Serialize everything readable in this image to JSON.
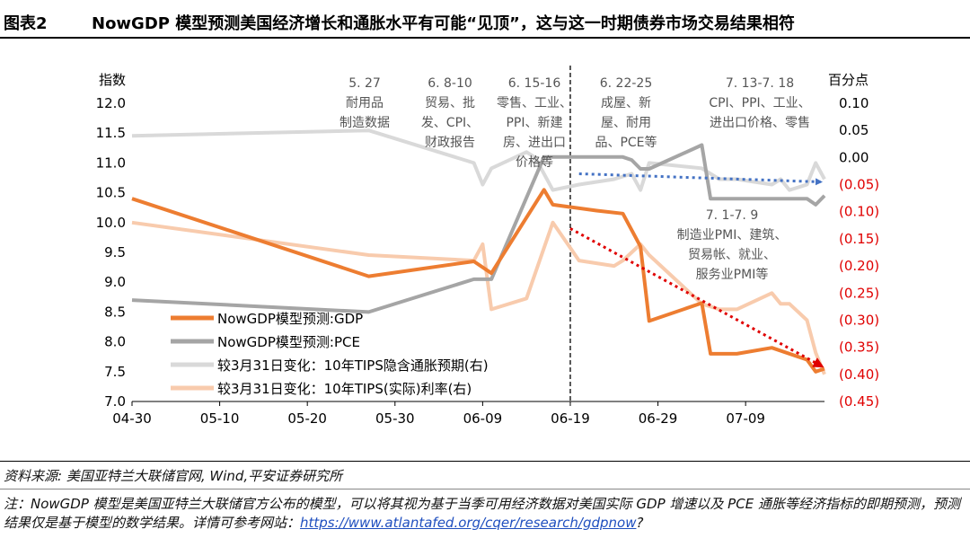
{
  "header": {
    "label": "图表2",
    "title": "NowGDP 模型预测美国经济增长和通胀水平有可能“见顶”，这与这一时期债券市场交易结果相符"
  },
  "footer": {
    "source": "资料来源: 美国亚特兰大联储官网, Wind,平安证券研究所",
    "note_prefix": "注：NowGDP 模型是美国亚特兰大联储官方公布的模型，可以将其视为基于当季可用经济数据对美国实际 GDP 增速以及 PCE 通胀等经济指标的即期预测，预测结果仅是基于模型的数学结果。详情可参考网站：",
    "note_link": "https://www.atlantafed.org/cqer/research/gdpnow",
    "note_suffix": "?"
  },
  "colors": {
    "gdp": "#ED7D31",
    "pce": "#A5A5A5",
    "tips_infl": "#D9D9D9",
    "tips_real": "#F8CBAD",
    "trend_blue": "#4472C4",
    "trend_red": "#E00000",
    "divider": "#000000"
  },
  "chart_data": {
    "type": "line",
    "left_axis": {
      "title": "指数",
      "min": 7.0,
      "max": 12.0,
      "ticks": [
        "7.0",
        "7.5",
        "8.0",
        "8.5",
        "9.0",
        "9.5",
        "10.0",
        "10.5",
        "11.0",
        "11.5",
        "12.0"
      ]
    },
    "right_axis": {
      "title": "百分点",
      "min": -0.45,
      "max": 0.1,
      "ticks": [
        "0.10",
        "0.05",
        "0.00",
        "(0.05)",
        "(0.10)",
        "(0.15)",
        "(0.20)",
        "(0.25)",
        "(0.30)",
        "(0.35)",
        "(0.40)",
        "(0.45)"
      ]
    },
    "x_axis": {
      "start": "2021-04-30",
      "end": "2021-07-18",
      "ticks": [
        "04-30",
        "05-10",
        "05-20",
        "05-30",
        "06-09",
        "06-19",
        "06-29",
        "07-09"
      ]
    },
    "series": [
      {
        "name": "NowGDP模型预测:GDP",
        "axis": "left",
        "color_key": "gdp",
        "points": [
          [
            "04-30",
            10.4
          ],
          [
            "05-27",
            9.1
          ],
          [
            "06-08",
            9.35
          ],
          [
            "06-10",
            9.15
          ],
          [
            "06-16",
            10.55
          ],
          [
            "06-17",
            10.3
          ],
          [
            "06-22",
            10.2
          ],
          [
            "06-25",
            10.15
          ],
          [
            "06-27",
            9.6
          ],
          [
            "06-28",
            8.35
          ],
          [
            "07-04",
            8.65
          ],
          [
            "07-05",
            7.8
          ],
          [
            "07-08",
            7.8
          ],
          [
            "07-12",
            7.9
          ],
          [
            "07-16",
            7.7
          ],
          [
            "07-17",
            7.5
          ],
          [
            "07-18",
            7.55
          ]
        ]
      },
      {
        "name": "NowGDP模型预测:PCE",
        "axis": "left",
        "color_key": "pce",
        "points": [
          [
            "04-30",
            8.7
          ],
          [
            "05-27",
            8.5
          ],
          [
            "06-08",
            9.05
          ],
          [
            "06-10",
            9.05
          ],
          [
            "06-16",
            11.1
          ],
          [
            "06-22",
            11.1
          ],
          [
            "06-25",
            11.1
          ],
          [
            "06-26",
            11.05
          ],
          [
            "06-27",
            10.9
          ],
          [
            "06-28",
            10.9
          ],
          [
            "07-04",
            11.3
          ],
          [
            "07-05",
            10.4
          ],
          [
            "07-16",
            10.4
          ],
          [
            "07-17",
            10.3
          ],
          [
            "07-18",
            10.45
          ]
        ]
      },
      {
        "name": "较3月31日变化：10年TIPS隐含通胀预期(右)",
        "axis": "right",
        "color_key": "tips_infl",
        "points": [
          [
            "04-30",
            0.04
          ],
          [
            "05-27",
            0.05
          ],
          [
            "06-08",
            -0.01
          ],
          [
            "06-09",
            -0.05
          ],
          [
            "06-10",
            -0.02
          ],
          [
            "06-14",
            0.01
          ],
          [
            "06-15",
            0.0
          ],
          [
            "06-17",
            -0.06
          ],
          [
            "06-20",
            -0.05
          ],
          [
            "06-24",
            -0.04
          ],
          [
            "06-26",
            -0.03
          ],
          [
            "06-27",
            -0.06
          ],
          [
            "06-28",
            -0.01
          ],
          [
            "07-04",
            -0.02
          ],
          [
            "07-06",
            -0.04
          ],
          [
            "07-08",
            -0.04
          ],
          [
            "07-12",
            -0.05
          ],
          [
            "07-13",
            -0.04
          ],
          [
            "07-14",
            -0.06
          ],
          [
            "07-16",
            -0.05
          ],
          [
            "07-17",
            -0.01
          ],
          [
            "07-18",
            -0.04
          ]
        ]
      },
      {
        "name": "较3月31日变化：10年TIPS(实际)利率(右)",
        "axis": "right",
        "color_key": "tips_real",
        "points": [
          [
            "04-30",
            -0.12
          ],
          [
            "05-27",
            -0.18
          ],
          [
            "06-08",
            -0.19
          ],
          [
            "06-09",
            -0.16
          ],
          [
            "06-10",
            -0.28
          ],
          [
            "06-14",
            -0.26
          ],
          [
            "06-17",
            -0.12
          ],
          [
            "06-20",
            -0.19
          ],
          [
            "06-24",
            -0.2
          ],
          [
            "06-25",
            -0.19
          ],
          [
            "06-27",
            -0.16
          ],
          [
            "06-28",
            -0.18
          ],
          [
            "07-04",
            -0.27
          ],
          [
            "07-06",
            -0.28
          ],
          [
            "07-08",
            -0.28
          ],
          [
            "07-12",
            -0.25
          ],
          [
            "07-13",
            -0.27
          ],
          [
            "07-14",
            -0.27
          ],
          [
            "07-16",
            -0.3
          ],
          [
            "07-17",
            -0.36
          ],
          [
            "07-18",
            -0.4
          ]
        ]
      }
    ],
    "trend_lines": [
      {
        "color_key": "trend_blue",
        "axis": "right",
        "from": [
          "06-20",
          -0.03
        ],
        "to": [
          "07-18",
          -0.045
        ]
      },
      {
        "color_key": "trend_red",
        "axis": "left",
        "from": [
          "06-19",
          9.9
        ],
        "to": [
          "07-18",
          7.6
        ]
      }
    ],
    "divider_date": "06-19",
    "annotations": [
      {
        "lines": [
          "5. 27",
          "耐用品",
          "制造数据"
        ]
      },
      {
        "lines": [
          "6. 8-10",
          "贸易、批",
          "发、CPI、",
          "财政报告"
        ]
      },
      {
        "lines": [
          "6. 15-16",
          "零售、工业、",
          "PPI、新建",
          "房、进出口",
          "价格等"
        ]
      },
      {
        "lines": [
          "6. 22-25",
          "成屋、新",
          "屋、耐用",
          "品、PCE等"
        ]
      },
      {
        "lines": [
          "7. 13-7. 18",
          "CPI、PPI、工业、",
          "进出口价格、零售"
        ]
      },
      {
        "lines": [
          "7. 1-7. 9",
          "制造业PMI、建筑、",
          "贸易帐、就业、",
          "服务业PMI等"
        ]
      }
    ]
  }
}
